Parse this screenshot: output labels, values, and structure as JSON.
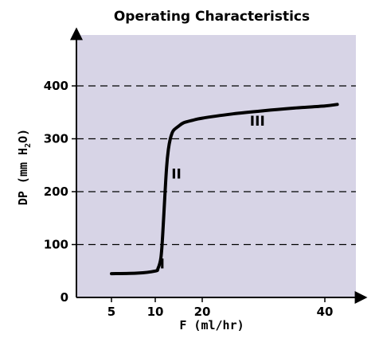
{
  "chart_data": {
    "type": "line",
    "title": "Operating Characteristics",
    "xlabel": "F (ml/hr)",
    "ylabel_main": "DP (mm H",
    "ylabel_sub": "2",
    "ylabel_end": "O)",
    "x_ticks": [
      5,
      10,
      20,
      40
    ],
    "x_tick_labels": [
      "5",
      "10",
      "20",
      "40"
    ],
    "y_ticks": [
      0,
      100,
      200,
      300,
      400
    ],
    "y_tick_labels": [
      "0",
      "100",
      "200",
      "300",
      "400"
    ],
    "gridlines_dashed_at": [
      100,
      200,
      300,
      400
    ],
    "grid": true,
    "legend": "none",
    "ylim": [
      0,
      480
    ],
    "series": [
      {
        "x": [
          5,
          8,
          10,
          10.6,
          11.2,
          11.6,
          12,
          12.4,
          12.8,
          13.2,
          13.6,
          14,
          15,
          16,
          18,
          20,
          25,
          30,
          35,
          40,
          42
        ],
        "y": [
          45,
          46,
          50,
          55,
          75,
          120,
          185,
          245,
          280,
          300,
          311,
          317,
          324,
          330,
          335,
          339,
          347,
          353,
          358,
          362,
          365
        ]
      }
    ],
    "annotations": [
      {
        "text": "I",
        "x": 11.5,
        "y": 55
      },
      {
        "text": "II",
        "x": 14.5,
        "y": 225
      },
      {
        "text": "III",
        "x": 29,
        "y": 325
      }
    ]
  },
  "colors": {
    "plot_background": "#d7d4e6",
    "line": "#000000",
    "grid": "#000000"
  }
}
